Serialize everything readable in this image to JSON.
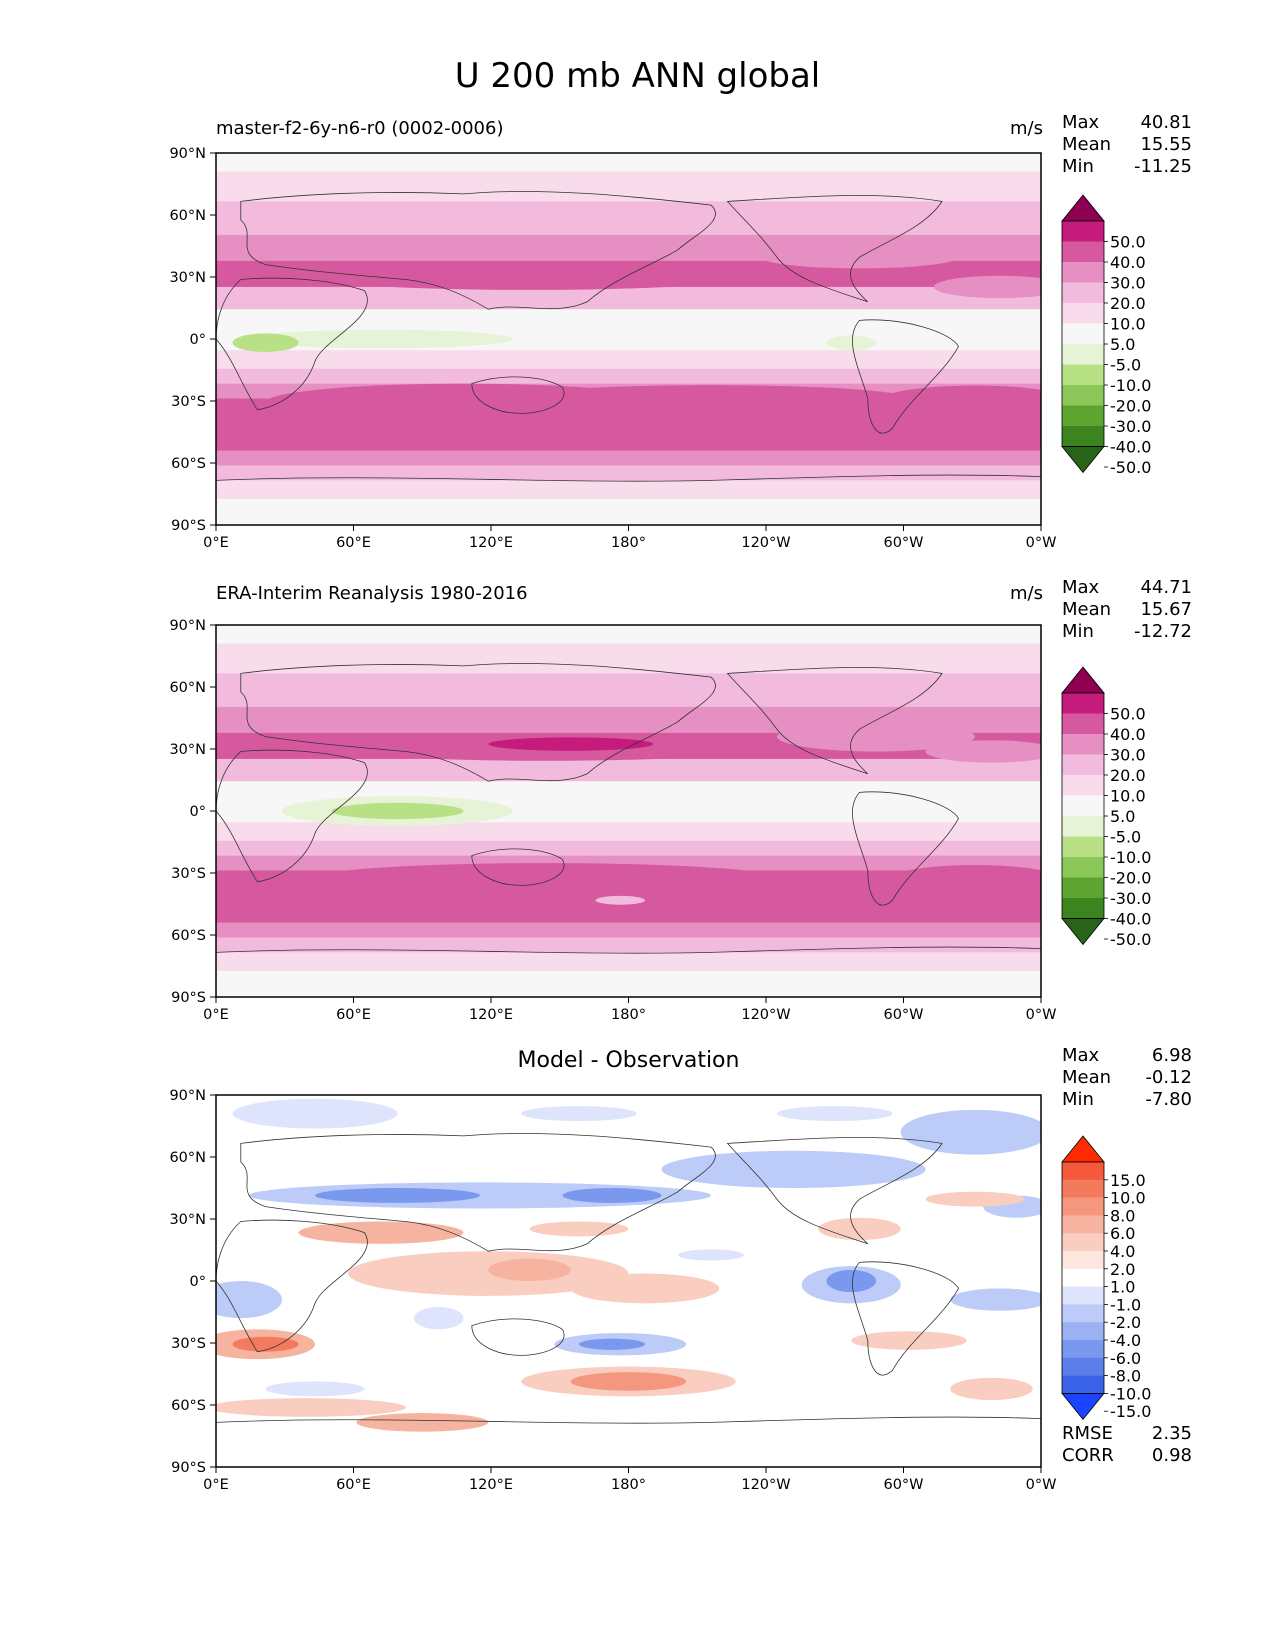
{
  "title": "U 200 mb ANN global",
  "panels": [
    {
      "subtitle": "master-f2-6y-n6-r0 (0002-0006)",
      "units": "m/s",
      "stats": [
        [
          "Max",
          "40.81"
        ],
        [
          "Mean",
          "15.55"
        ],
        [
          "Min",
          "-11.25"
        ]
      ],
      "colorbar": "wind"
    },
    {
      "subtitle": "ERA-Interim Reanalysis 1980-2016",
      "units": "m/s",
      "stats": [
        [
          "Max",
          "44.71"
        ],
        [
          "Mean",
          "15.67"
        ],
        [
          "Min",
          "-12.72"
        ]
      ],
      "colorbar": "wind"
    },
    {
      "subtitle": "Model - Observation",
      "units": "",
      "stats": [
        [
          "Max",
          "6.98"
        ],
        [
          "Mean",
          "-0.12"
        ],
        [
          "Min",
          "-7.80"
        ]
      ],
      "extra": [
        [
          "RMSE",
          "2.35"
        ],
        [
          "CORR",
          "0.98"
        ]
      ],
      "colorbar": "diff"
    }
  ],
  "axes": {
    "lat_ticks": [
      "90°N",
      "60°N",
      "30°N",
      "0°",
      "30°S",
      "60°S",
      "90°S"
    ],
    "lon_ticks": [
      "0°E",
      "60°E",
      "120°E",
      "180°",
      "120°W",
      "60°W",
      "0°W"
    ]
  },
  "colorbars": {
    "wind": {
      "labels": [
        "50.0",
        "40.0",
        "30.0",
        "20.0",
        "10.0",
        "5.0",
        "-5.0",
        "-10.0",
        "-20.0",
        "-30.0",
        "-40.0",
        "-50.0"
      ],
      "colors": [
        "#8e0152",
        "#c51b7d",
        "#d6589e",
        "#e68fc3",
        "#f2bbdd",
        "#f8dcec",
        "#f7f7f7",
        "#e6f3d6",
        "#b8e186",
        "#8cc759",
        "#5da431",
        "#3c8420",
        "#276419"
      ]
    },
    "diff": {
      "labels": [
        "15.0",
        "10.0",
        "8.0",
        "6.0",
        "4.0",
        "2.0",
        "1.0",
        "-1.0",
        "-2.0",
        "-4.0",
        "-6.0",
        "-8.0",
        "-10.0",
        "-15.0"
      ],
      "colors": [
        "#ff2a00",
        "#f5593c",
        "#f47a5e",
        "#f4977e",
        "#f6b39f",
        "#f9cdbf",
        "#fce6de",
        "#ffffff",
        "#dde4fb",
        "#bccbf7",
        "#9bb1f3",
        "#7a98ee",
        "#5b7eea",
        "#3a63e8",
        "#1a44ff"
      ]
    }
  },
  "chart_data": [
    {
      "type": "heatmap",
      "title": "master-f2-6y-n6-r0 (0002-0006)",
      "units": "m/s",
      "x_range": [
        "0°E",
        "0°W"
      ],
      "y_range": [
        "90°S",
        "90°N"
      ],
      "zonal_mean_profile_lat": [
        90,
        75,
        60,
        45,
        35,
        30,
        20,
        10,
        0,
        -10,
        -20,
        -30,
        -40,
        -50,
        -60,
        -70,
        -80,
        -90
      ],
      "zonal_mean_profile_u": [
        2,
        8,
        14,
        22,
        28,
        26,
        14,
        6,
        -2,
        4,
        18,
        30,
        32,
        30,
        22,
        10,
        4,
        1
      ],
      "max": 40.81,
      "mean": 15.55,
      "min": -11.25
    },
    {
      "type": "heatmap",
      "title": "ERA-Interim Reanalysis 1980-2016",
      "units": "m/s",
      "x_range": [
        "0°E",
        "0°W"
      ],
      "y_range": [
        "90°S",
        "90°N"
      ],
      "zonal_mean_profile_lat": [
        90,
        75,
        60,
        45,
        35,
        30,
        20,
        10,
        0,
        -10,
        -20,
        -30,
        -40,
        -50,
        -60,
        -70,
        -80,
        -90
      ],
      "zonal_mean_profile_u": [
        1,
        8,
        15,
        24,
        30,
        28,
        15,
        5,
        -4,
        3,
        17,
        30,
        33,
        31,
        23,
        10,
        4,
        1
      ],
      "max": 44.71,
      "mean": 15.67,
      "min": -12.72
    },
    {
      "type": "heatmap",
      "title": "Model - Observation",
      "x_range": [
        "0°E",
        "0°W"
      ],
      "y_range": [
        "90°S",
        "90°N"
      ],
      "max": 6.98,
      "mean": -0.12,
      "min": -7.8,
      "rmse": 2.35,
      "corr": 0.98
    }
  ]
}
